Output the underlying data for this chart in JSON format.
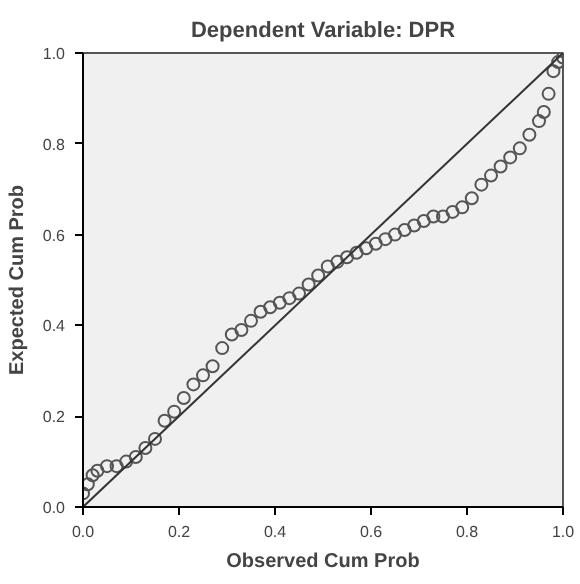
{
  "chart_data": {
    "type": "scatter",
    "title": "Dependent Variable: DPR",
    "xlabel": "Observed Cum Prob",
    "ylabel": "Expected Cum Prob",
    "xlim": [
      0,
      1
    ],
    "ylim": [
      0,
      1
    ],
    "xticks": [
      {
        "value": 0,
        "label": "0.0"
      },
      {
        "value": 0.2,
        "label": "0.2"
      },
      {
        "value": 0.4,
        "label": "0.4"
      },
      {
        "value": 0.6,
        "label": "0.6"
      },
      {
        "value": 0.8,
        "label": "0.8"
      },
      {
        "value": 1,
        "label": "1.0"
      }
    ],
    "yticks": [
      {
        "value": 0,
        "label": "0.0"
      },
      {
        "value": 0.2,
        "label": "0.2"
      },
      {
        "value": 0.4,
        "label": "0.4"
      },
      {
        "value": 0.6,
        "label": "0.6"
      },
      {
        "value": 0.8,
        "label": "0.8"
      },
      {
        "value": 1,
        "label": "1.0"
      }
    ],
    "grid": false,
    "series": [
      {
        "marker": "circle",
        "color": "#555555",
        "x": [
          0.0,
          0.01,
          0.02,
          0.03,
          0.05,
          0.07,
          0.09,
          0.11,
          0.13,
          0.15,
          0.17,
          0.19,
          0.21,
          0.23,
          0.25,
          0.27,
          0.29,
          0.31,
          0.33,
          0.35,
          0.37,
          0.39,
          0.41,
          0.43,
          0.45,
          0.47,
          0.49,
          0.51,
          0.53,
          0.55,
          0.57,
          0.59,
          0.61,
          0.63,
          0.65,
          0.67,
          0.69,
          0.71,
          0.73,
          0.75,
          0.77,
          0.79,
          0.81,
          0.83,
          0.85,
          0.87,
          0.89,
          0.91,
          0.93,
          0.95,
          0.96,
          0.97,
          0.98,
          0.99,
          1.0
        ],
        "values": [
          0.03,
          0.05,
          0.07,
          0.08,
          0.09,
          0.09,
          0.1,
          0.11,
          0.13,
          0.15,
          0.19,
          0.21,
          0.24,
          0.27,
          0.29,
          0.31,
          0.35,
          0.38,
          0.39,
          0.41,
          0.43,
          0.44,
          0.45,
          0.46,
          0.47,
          0.49,
          0.51,
          0.53,
          0.54,
          0.55,
          0.56,
          0.57,
          0.58,
          0.59,
          0.6,
          0.61,
          0.62,
          0.63,
          0.64,
          0.64,
          0.65,
          0.66,
          0.68,
          0.71,
          0.73,
          0.75,
          0.77,
          0.79,
          0.82,
          0.85,
          0.87,
          0.91,
          0.96,
          0.98,
          0.99
        ]
      },
      {
        "type": "line",
        "color": "#333333",
        "x": [
          0,
          1
        ],
        "values": [
          0,
          1
        ]
      }
    ]
  }
}
